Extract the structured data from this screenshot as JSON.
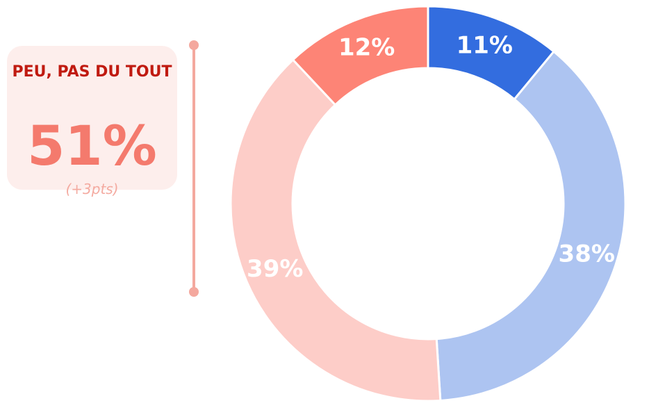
{
  "chart_data": {
    "type": "donut",
    "categories": [
      null,
      null,
      null,
      null
    ],
    "values": [
      11,
      38,
      39,
      12
    ],
    "value_labels": [
      "11%",
      "38%",
      "39%",
      "12%"
    ],
    "colors": [
      "#336ddf",
      "#adc4f1",
      "#fdcdc8",
      "#fd8476"
    ],
    "annotation": {
      "title": "PEU, PAS DU TOUT",
      "value": "51%",
      "change": "(+3pts)"
    }
  }
}
